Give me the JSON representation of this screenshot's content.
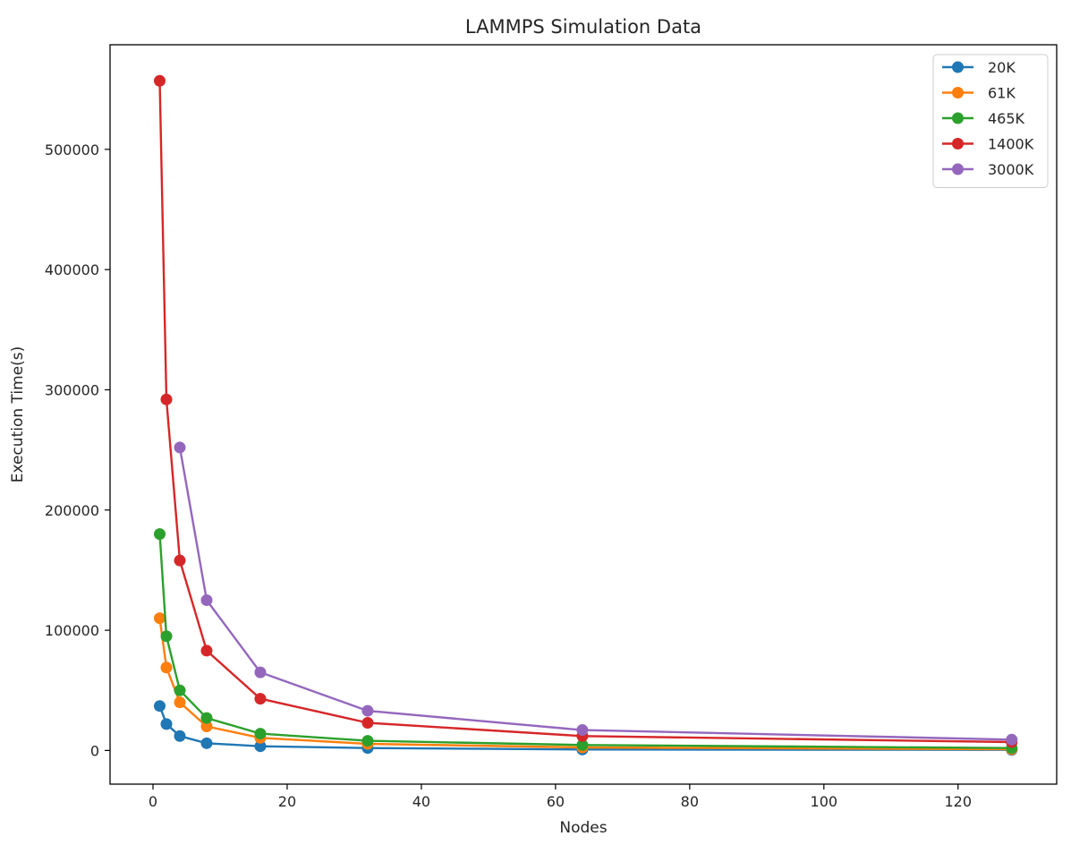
{
  "chart_data": {
    "type": "line",
    "title": "LAMMPS Simulation Data",
    "xlabel": "Nodes",
    "ylabel": "Execution Time(s)",
    "xlim": [
      -6.4,
      134.7
    ],
    "ylim": [
      -28000,
      587000
    ],
    "xticks": [
      0,
      20,
      40,
      60,
      80,
      100,
      120
    ],
    "yticks": [
      0,
      100000,
      200000,
      300000,
      400000,
      500000
    ],
    "legend_position": "top-right",
    "series": [
      {
        "name": "20K",
        "color": "#1f77b4",
        "x": [
          1,
          2,
          4,
          8,
          16,
          32,
          64,
          128
        ],
        "y": [
          37000,
          22000,
          12000,
          6000,
          3500,
          2000,
          800,
          500
        ]
      },
      {
        "name": "61K",
        "color": "#ff7f0e",
        "x": [
          1,
          2,
          4,
          8,
          16,
          32,
          64,
          128
        ],
        "y": [
          110000,
          69000,
          40000,
          20000,
          10500,
          5500,
          2500,
          1000
        ]
      },
      {
        "name": "465K",
        "color": "#2ca02c",
        "x": [
          1,
          2,
          4,
          8,
          16,
          32,
          64,
          128
        ],
        "y": [
          180000,
          95000,
          50000,
          27000,
          14000,
          8000,
          4500,
          2000
        ]
      },
      {
        "name": "1400K",
        "color": "#d62728",
        "x": [
          1,
          2,
          4,
          8,
          16,
          32,
          64,
          128
        ],
        "y": [
          557000,
          292000,
          158000,
          83000,
          43000,
          23000,
          12000,
          7000
        ]
      },
      {
        "name": "3000K",
        "color": "#9467bd",
        "x": [
          4,
          8,
          16,
          32,
          64,
          128
        ],
        "y": [
          252000,
          125000,
          65000,
          33000,
          17000,
          9000
        ]
      }
    ]
  }
}
